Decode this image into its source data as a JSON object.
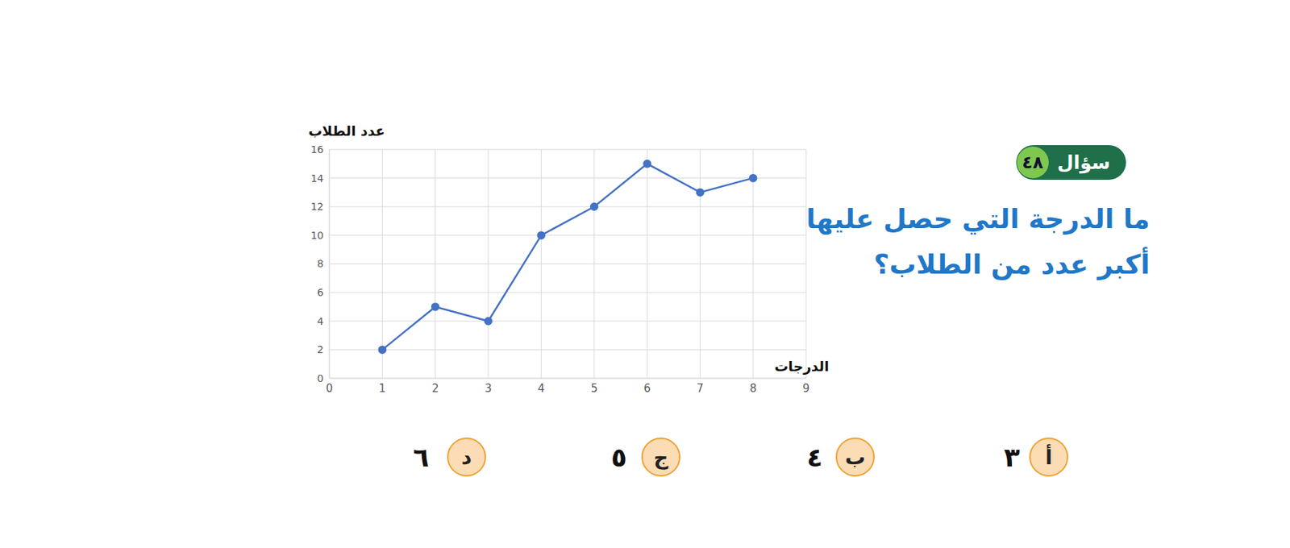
{
  "chart_data": {
    "type": "line",
    "xlabel": "الدرجات",
    "ylabel": "عدد الطلاب",
    "x": [
      1,
      2,
      3,
      4,
      5,
      6,
      7,
      8
    ],
    "values": [
      2,
      5,
      4,
      10,
      12,
      15,
      13,
      14
    ],
    "color": "#4472c4",
    "marker": "circle",
    "xlim": [
      0,
      9
    ],
    "xticks": [
      0,
      1,
      2,
      3,
      4,
      5,
      6,
      7,
      8,
      9
    ],
    "ylim": [
      0,
      16
    ],
    "yticks": [
      0,
      2,
      4,
      6,
      8,
      10,
      12,
      14,
      16
    ],
    "grid": true
  },
  "question": {
    "label": "سؤال",
    "number": "٤٨",
    "lines": [
      "ما الدرجة التي حصل عليها",
      "أكبر عدد من الطلاب؟"
    ],
    "options": [
      {
        "letter": "أ",
        "text": "٣"
      },
      {
        "letter": "ب",
        "text": "٤"
      },
      {
        "letter": "ج",
        "text": "٥"
      },
      {
        "letter": "د",
        "text": "٦"
      }
    ]
  }
}
